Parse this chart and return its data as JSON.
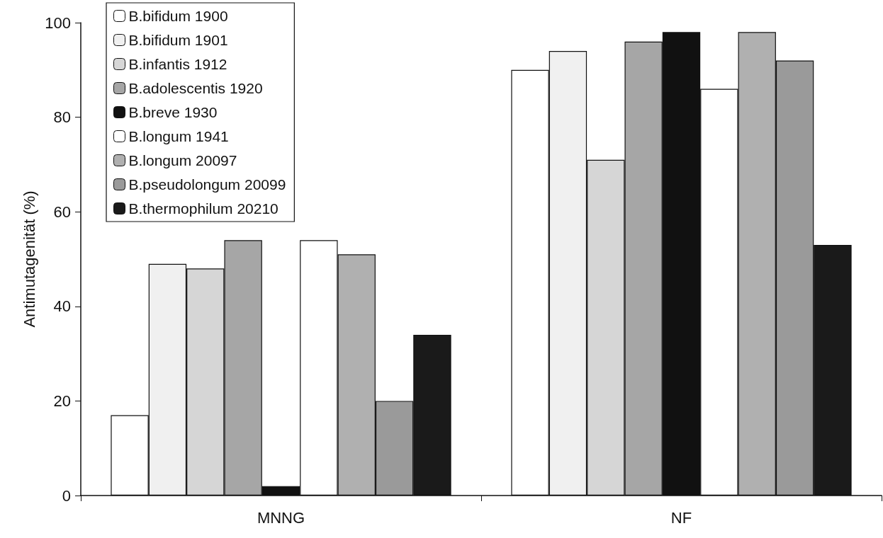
{
  "chart_data": {
    "type": "bar",
    "ylabel": "Antimutagenität (%)",
    "categories": [
      "MNNG",
      "NF"
    ],
    "series": [
      {
        "name": "B.bifidum 1900",
        "color": "#ffffff",
        "values": [
          17,
          90
        ]
      },
      {
        "name": "B.bifidum 1901",
        "color": "#f0f0f0",
        "values": [
          49,
          94
        ]
      },
      {
        "name": "B.infantis 1912",
        "color": "#d6d6d6",
        "values": [
          48,
          71
        ]
      },
      {
        "name": "B.adolescentis 1920",
        "color": "#a6a6a6",
        "values": [
          54,
          96
        ]
      },
      {
        "name": "B.breve 1930",
        "color": "#111111",
        "values": [
          2,
          98
        ]
      },
      {
        "name": "B.longum 1941",
        "color": "#ffffff",
        "values": [
          54,
          86
        ]
      },
      {
        "name": "B.longum 20097",
        "color": "#b0b0b0",
        "values": [
          51,
          98
        ]
      },
      {
        "name": "B.pseudolongum 20099",
        "color": "#9a9a9a",
        "values": [
          20,
          92
        ]
      },
      {
        "name": "B.thermophilum 20210",
        "color": "#1a1a1a",
        "values": [
          34,
          53
        ]
      }
    ],
    "ylim": [
      0,
      100
    ],
    "yticks": [
      0,
      20,
      40,
      60,
      80,
      100
    ],
    "grid": false,
    "legend": "top left"
  }
}
